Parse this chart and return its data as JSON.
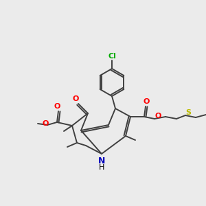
{
  "background_color": "#ebebeb",
  "atom_colors": {
    "C": "#000000",
    "O": "#ff0000",
    "N": "#0000bb",
    "S": "#bbbb00",
    "Cl": "#00aa00",
    "H": "#000000"
  },
  "bond_color": "#404040",
  "bond_width": 1.4,
  "figsize": [
    3.0,
    3.0
  ],
  "dpi": 100
}
